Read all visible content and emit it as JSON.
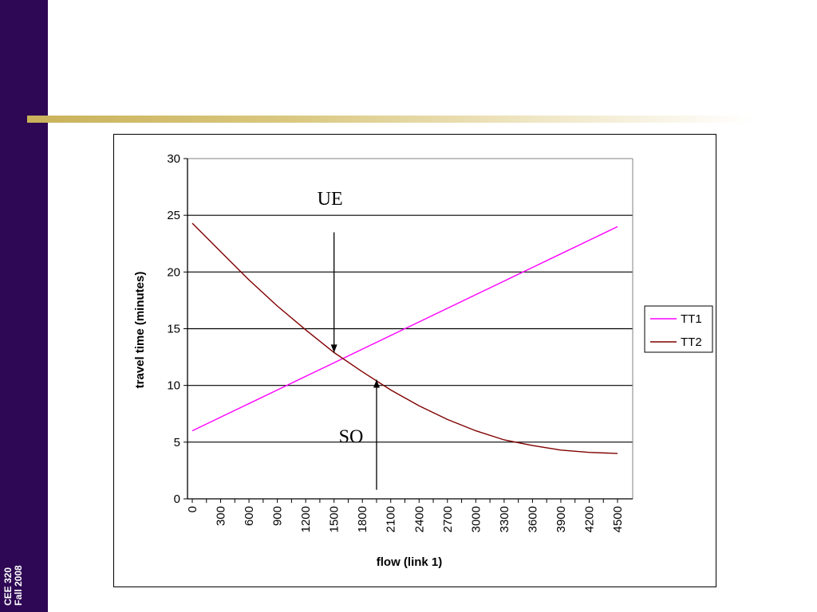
{
  "slide": {
    "footer_line1": "CEE 320",
    "footer_line2": "Fall 2008"
  },
  "chart_data": {
    "type": "line",
    "xlabel": "flow (link 1)",
    "ylabel": "travel time (minutes)",
    "xlim": [
      0,
      4500
    ],
    "ylim": [
      0,
      30
    ],
    "y_ticks": [
      0,
      5,
      10,
      15,
      20,
      25,
      30
    ],
    "x_tick_labels": [
      "0",
      "300",
      "600",
      "900",
      "1200",
      "1500",
      "1800",
      "2100",
      "2400",
      "2700",
      "3000",
      "3300",
      "3600",
      "3900",
      "4200",
      "4500"
    ],
    "grid": "horizontal",
    "legend_position": "right",
    "series": [
      {
        "name": "TT1",
        "color": "#ff00ff",
        "x": [
          0,
          300,
          600,
          900,
          1200,
          1500,
          1800,
          2100,
          2400,
          2700,
          3000,
          3300,
          3600,
          3900,
          4200,
          4500
        ],
        "values": [
          6.0,
          7.2,
          8.4,
          9.6,
          10.8,
          12.0,
          13.2,
          14.4,
          15.6,
          16.8,
          18.0,
          19.2,
          20.4,
          21.6,
          22.8,
          24.0
        ]
      },
      {
        "name": "TT2",
        "color": "#800000",
        "x": [
          0,
          300,
          600,
          900,
          1200,
          1500,
          1800,
          2100,
          2400,
          2700,
          3000,
          3300,
          3600,
          3900,
          4200,
          4500
        ],
        "values": [
          24.3,
          21.8,
          19.3,
          17.0,
          14.9,
          12.9,
          11.2,
          9.6,
          8.2,
          7.0,
          6.0,
          5.2,
          4.7,
          4.3,
          4.1,
          4.0
        ]
      }
    ],
    "annotations": [
      {
        "text": "UE",
        "x": 1500,
        "y_from": 23.5,
        "y_to": 12.9,
        "direction": "down",
        "label_y": 26.5
      },
      {
        "text": "SO",
        "x": 1950,
        "y_from": 0.8,
        "y_to": 10.5,
        "direction": "up",
        "label_y": 5.5
      }
    ]
  }
}
